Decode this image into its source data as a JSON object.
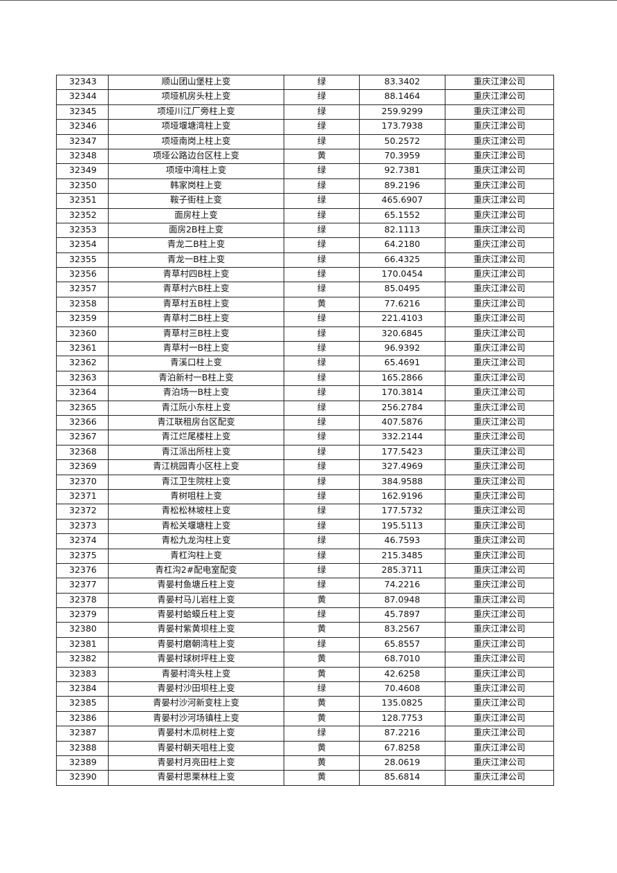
{
  "table": {
    "rows": [
      [
        "32343",
        "顺山团山堡柱上变",
        "绿",
        "83.3402",
        "重庆江津公司"
      ],
      [
        "32344",
        "项垭机房头柱上变",
        "绿",
        "88.1464",
        "重庆江津公司"
      ],
      [
        "32345",
        "项垭川江厂旁柱上变",
        "绿",
        "259.9299",
        "重庆江津公司"
      ],
      [
        "32346",
        "项垭堰塘湾柱上变",
        "绿",
        "173.7938",
        "重庆江津公司"
      ],
      [
        "32347",
        "项垭南岗上柱上变",
        "绿",
        "50.2572",
        "重庆江津公司"
      ],
      [
        "32348",
        "项垭公路边台区柱上变",
        "黄",
        "70.3959",
        "重庆江津公司"
      ],
      [
        "32349",
        "项垭中湾柱上变",
        "绿",
        "92.7381",
        "重庆江津公司"
      ],
      [
        "32350",
        "韩家岗柱上变",
        "绿",
        "89.2196",
        "重庆江津公司"
      ],
      [
        "32351",
        "鞍子街柱上变",
        "绿",
        "465.6907",
        "重庆江津公司"
      ],
      [
        "32352",
        "面房柱上变",
        "绿",
        "65.1552",
        "重庆江津公司"
      ],
      [
        "32353",
        "面房2B柱上变",
        "绿",
        "82.1113",
        "重庆江津公司"
      ],
      [
        "32354",
        "青龙二B柱上变",
        "绿",
        "64.2180",
        "重庆江津公司"
      ],
      [
        "32355",
        "青龙一B柱上变",
        "绿",
        "66.4325",
        "重庆江津公司"
      ],
      [
        "32356",
        "青草村四B柱上变",
        "绿",
        "170.0454",
        "重庆江津公司"
      ],
      [
        "32357",
        "青草村六B柱上变",
        "绿",
        "85.0495",
        "重庆江津公司"
      ],
      [
        "32358",
        "青草村五B柱上变",
        "黄",
        "77.6216",
        "重庆江津公司"
      ],
      [
        "32359",
        "青草村二B柱上变",
        "绿",
        "221.4103",
        "重庆江津公司"
      ],
      [
        "32360",
        "青草村三B柱上变",
        "绿",
        "320.6845",
        "重庆江津公司"
      ],
      [
        "32361",
        "青草村一B柱上变",
        "绿",
        "96.9392",
        "重庆江津公司"
      ],
      [
        "32362",
        "青溪口柱上变",
        "绿",
        "65.4691",
        "重庆江津公司"
      ],
      [
        "32363",
        "青泊新村一B柱上变",
        "绿",
        "165.2866",
        "重庆江津公司"
      ],
      [
        "32364",
        "青泊场一B柱上变",
        "绿",
        "170.3814",
        "重庆江津公司"
      ],
      [
        "32365",
        "青江阮小东柱上变",
        "绿",
        "256.2784",
        "重庆江津公司"
      ],
      [
        "32366",
        "青江联租房台区配变",
        "绿",
        "407.5876",
        "重庆江津公司"
      ],
      [
        "32367",
        "青江烂尾楼柱上变",
        "绿",
        "332.2144",
        "重庆江津公司"
      ],
      [
        "32368",
        "青江派出所柱上变",
        "绿",
        "177.5423",
        "重庆江津公司"
      ],
      [
        "32369",
        "青江桃园青小区柱上变",
        "绿",
        "327.4969",
        "重庆江津公司"
      ],
      [
        "32370",
        "青江卫生院柱上变",
        "绿",
        "384.9588",
        "重庆江津公司"
      ],
      [
        "32371",
        "青树咀柱上变",
        "绿",
        "162.9196",
        "重庆江津公司"
      ],
      [
        "32372",
        "青松松林坡柱上变",
        "绿",
        "177.5732",
        "重庆江津公司"
      ],
      [
        "32373",
        "青松关堰塘柱上变",
        "绿",
        "195.5113",
        "重庆江津公司"
      ],
      [
        "32374",
        "青松九龙沟柱上变",
        "绿",
        "46.7593",
        "重庆江津公司"
      ],
      [
        "32375",
        "青杠沟柱上变",
        "绿",
        "215.3485",
        "重庆江津公司"
      ],
      [
        "32376",
        "青杠沟2#配电室配变",
        "绿",
        "285.3711",
        "重庆江津公司"
      ],
      [
        "32377",
        "青晏村鱼塘丘柱上变",
        "绿",
        "74.2216",
        "重庆江津公司"
      ],
      [
        "32378",
        "青晏村马儿岩柱上变",
        "黄",
        "87.0948",
        "重庆江津公司"
      ],
      [
        "32379",
        "青晏村蛤蟆丘柱上变",
        "绿",
        "45.7897",
        "重庆江津公司"
      ],
      [
        "32380",
        "青晏村紫黄坝柱上变",
        "黄",
        "83.2567",
        "重庆江津公司"
      ],
      [
        "32381",
        "青晏村磨朝湾柱上变",
        "绿",
        "65.8557",
        "重庆江津公司"
      ],
      [
        "32382",
        "青晏村球树坪柱上变",
        "黄",
        "68.7010",
        "重庆江津公司"
      ],
      [
        "32383",
        "青晏村湾头柱上变",
        "黄",
        "42.6258",
        "重庆江津公司"
      ],
      [
        "32384",
        "青晏村沙田坝柱上变",
        "绿",
        "70.4608",
        "重庆江津公司"
      ],
      [
        "32385",
        "青晏村沙河新变柱上变",
        "黄",
        "135.0825",
        "重庆江津公司"
      ],
      [
        "32386",
        "青晏村沙河场镇柱上变",
        "黄",
        "128.7753",
        "重庆江津公司"
      ],
      [
        "32387",
        "青晏村木瓜树柱上变",
        "绿",
        "87.2216",
        "重庆江津公司"
      ],
      [
        "32388",
        "青晏村朝天咀柱上变",
        "黄",
        "67.8258",
        "重庆江津公司"
      ],
      [
        "32389",
        "青晏村月亮田柱上变",
        "黄",
        "28.0619",
        "重庆江津公司"
      ],
      [
        "32390",
        "青晏村思栗林柱上变",
        "黄",
        "85.6814",
        "重庆江津公司"
      ]
    ]
  }
}
